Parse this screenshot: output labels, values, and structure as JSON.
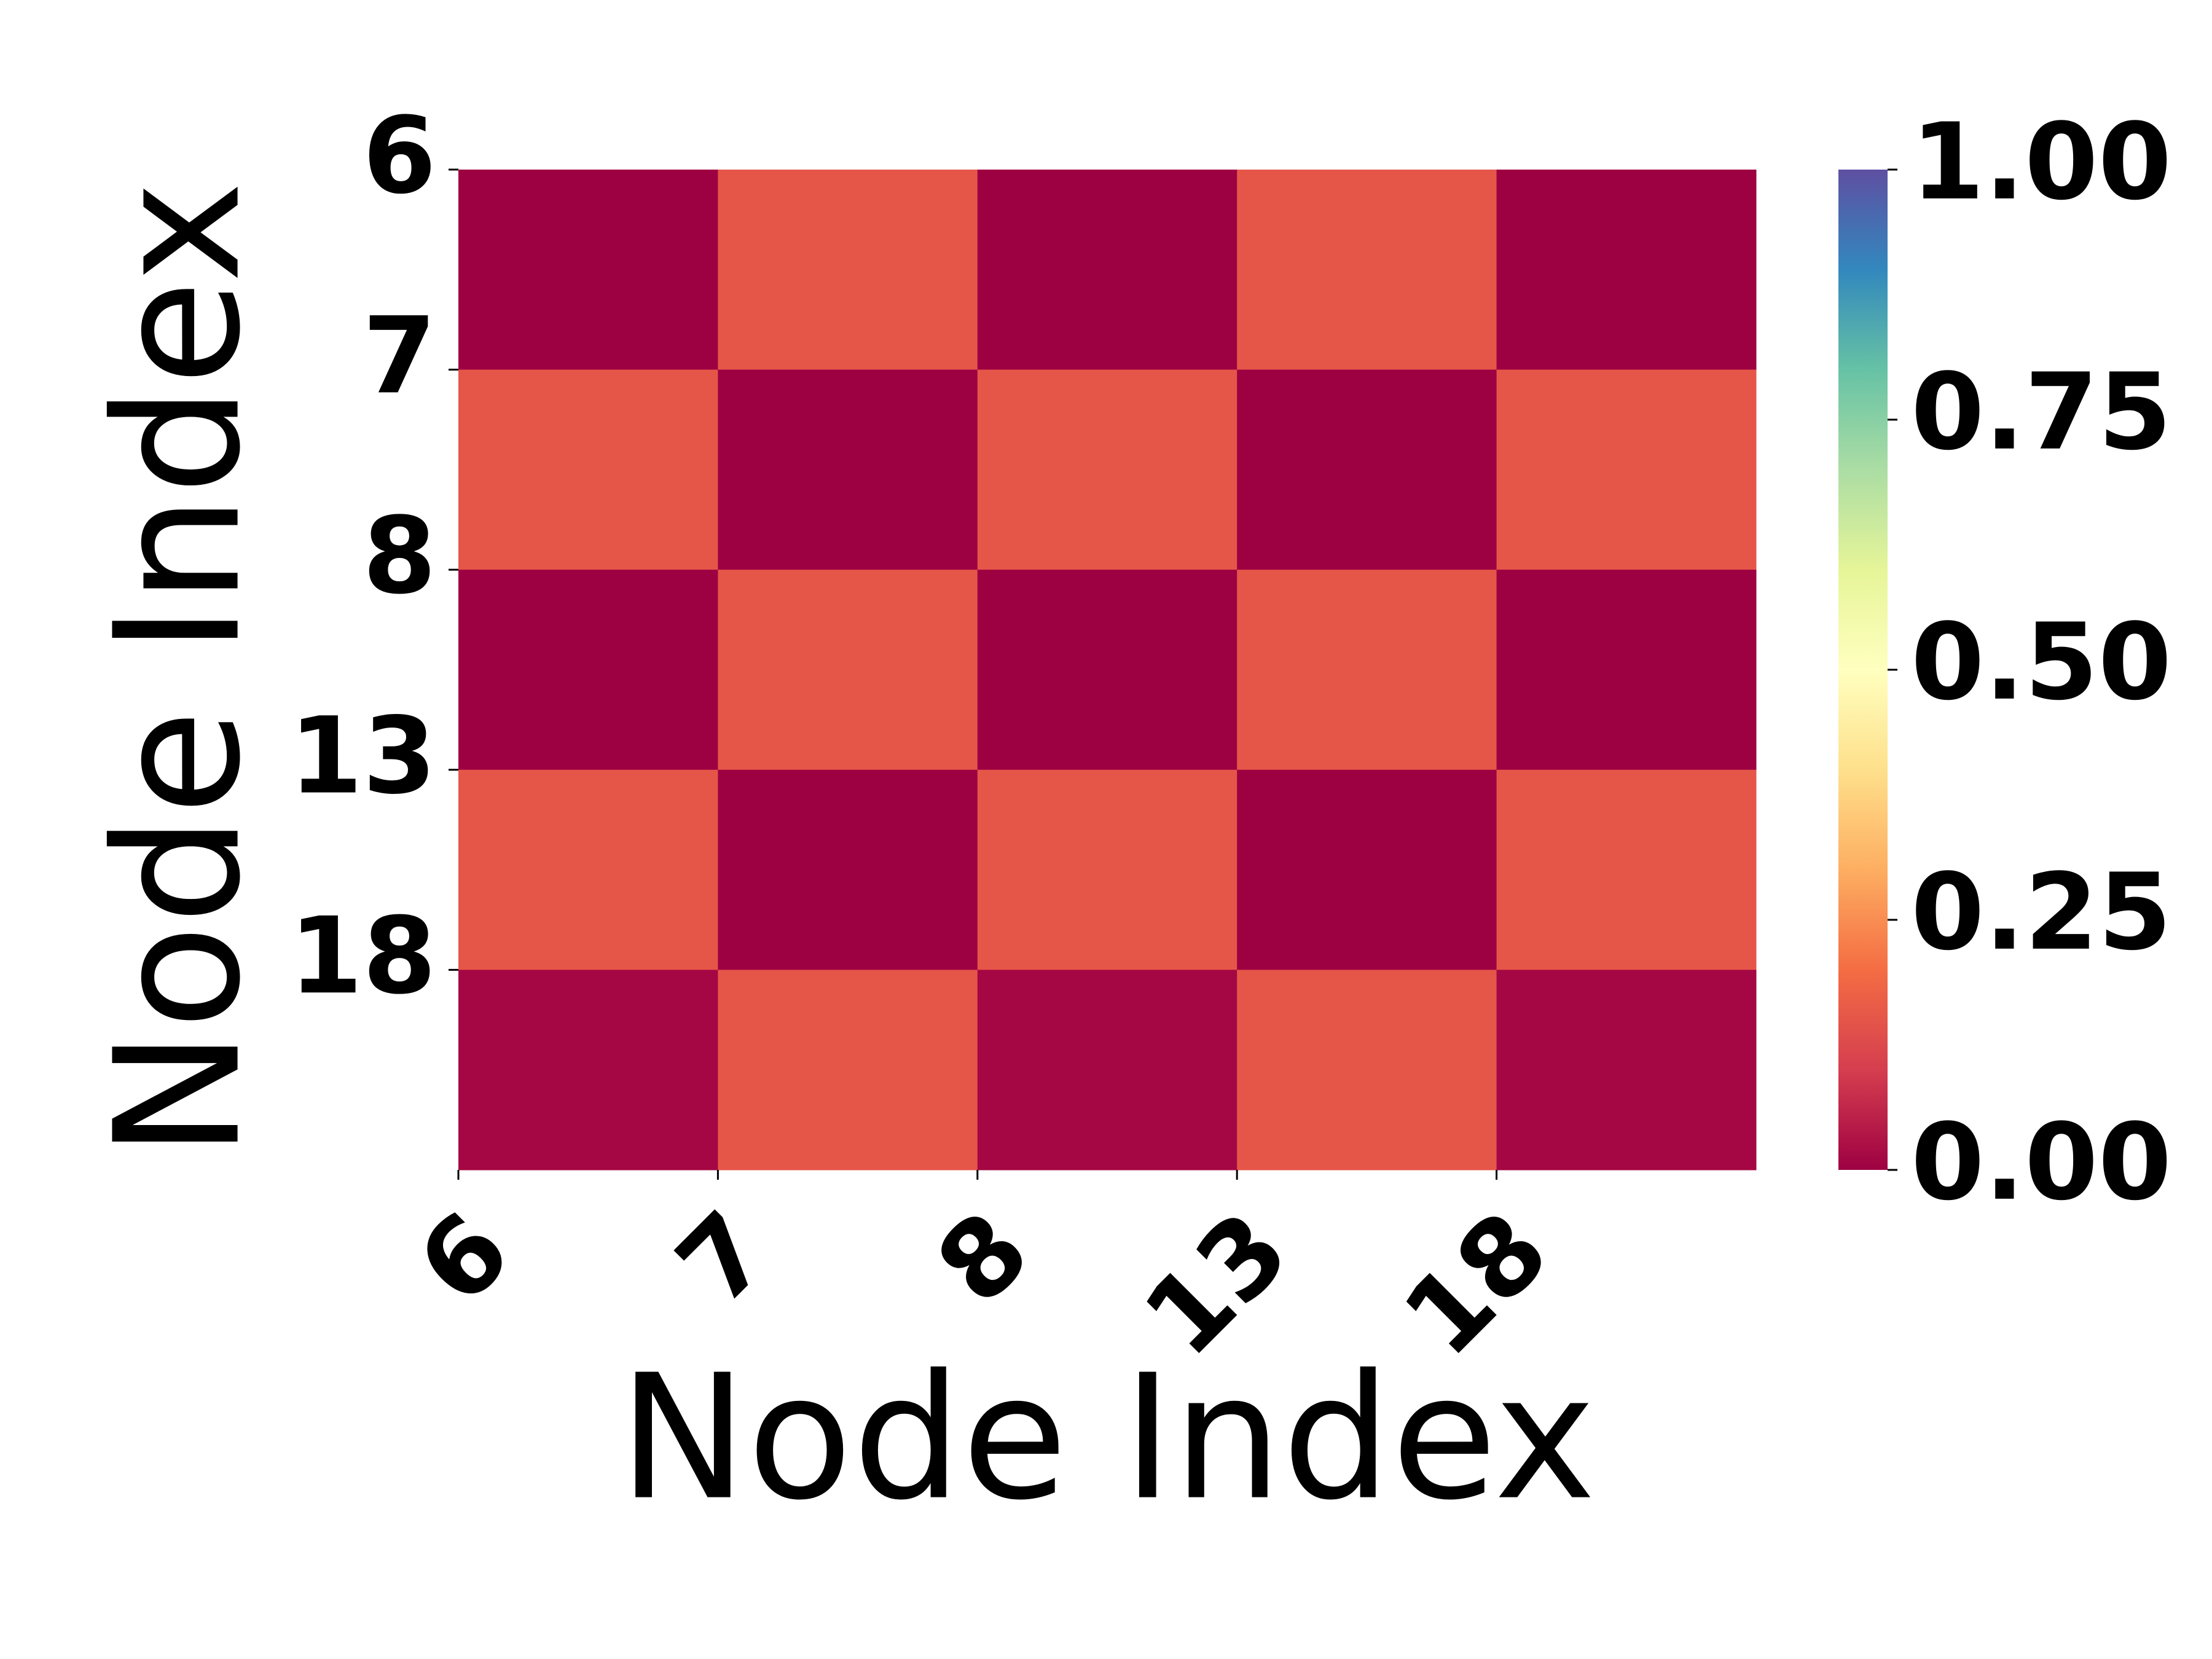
{
  "chart_data": {
    "type": "heatmap",
    "xlabel": "Node Index",
    "ylabel": "Node Index",
    "x_categories": [
      "6",
      "7",
      "8",
      "13",
      "18"
    ],
    "y_categories": [
      "6",
      "7",
      "8",
      "13",
      "18"
    ],
    "values": [
      [
        0,
        0.15,
        0,
        0.15,
        0
      ],
      [
        0.15,
        0,
        0.15,
        0,
        0.15
      ],
      [
        0,
        0.15,
        0,
        0.15,
        0
      ],
      [
        0.15,
        0,
        0.15,
        0,
        0.15
      ],
      [
        0.01,
        0.15,
        0.01,
        0.15,
        0.01
      ]
    ],
    "colormap": "Spectral",
    "zlim": [
      0,
      1
    ],
    "zticks": [
      {
        "value": 0,
        "label": "0.00"
      },
      {
        "value": 0.25,
        "label": "0.25"
      },
      {
        "value": 0.5,
        "label": "0.50"
      },
      {
        "value": 0.75,
        "label": "0.75"
      },
      {
        "value": 1,
        "label": "1.00"
      }
    ]
  }
}
